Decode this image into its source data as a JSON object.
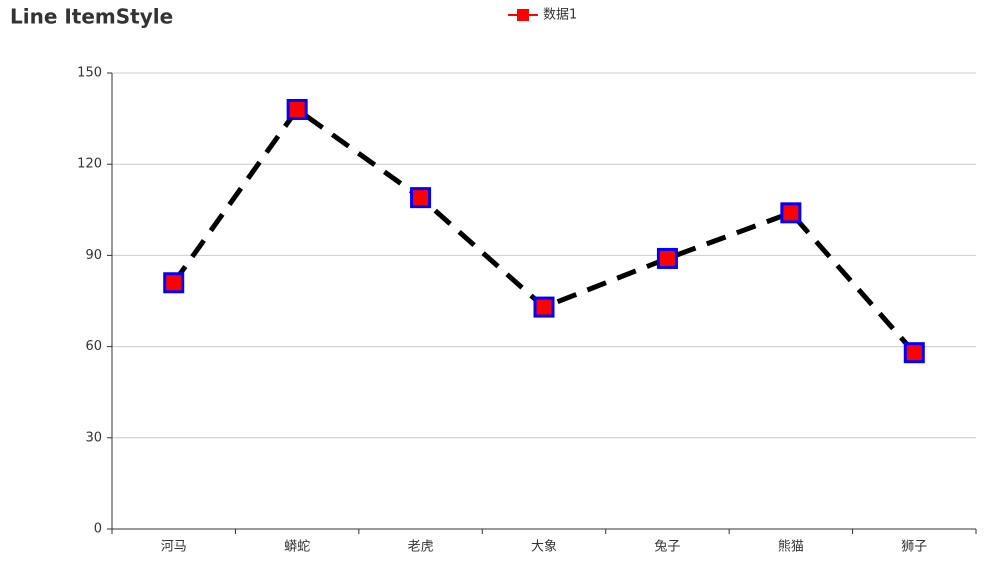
{
  "chart_data": {
    "type": "line",
    "title": "Line ItemStyle",
    "categories": [
      "河马",
      "蟒蛇",
      "老虎",
      "大象",
      "兔子",
      "熊猫",
      "狮子"
    ],
    "series": [
      {
        "name": "数据1",
        "color": "#ff0000",
        "line_color": "#000000",
        "border_color": "#0000ff",
        "values": [
          81,
          138,
          109,
          73,
          89,
          104,
          58
        ]
      }
    ],
    "ylim": [
      0,
      150
    ],
    "yticks": [
      0,
      30,
      60,
      90,
      120,
      150
    ],
    "grid": true,
    "legend": "top"
  }
}
